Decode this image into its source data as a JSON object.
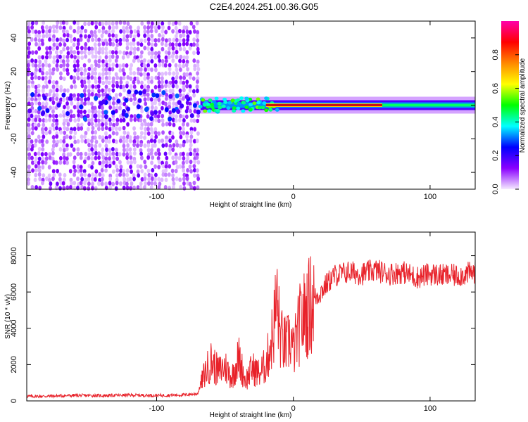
{
  "title": "C2E4.2024.251.00.36.G05",
  "colors": {
    "snr_line": "#e8222a",
    "centerline": "#cc1111",
    "background": "#ffffff"
  },
  "colorbar": {
    "label": "Normalized spectral amplitude",
    "ticks": [
      "0.0",
      "0.2",
      "0.4",
      "0.6",
      "0.8"
    ],
    "tick_values": [
      0.0,
      0.2,
      0.4,
      0.6,
      0.8
    ],
    "range": [
      0,
      1
    ],
    "colormap": [
      "#f5eaff",
      "#8a00ff",
      "#0000ff",
      "#00ffff",
      "#00ff00",
      "#ffff00",
      "#ff8800",
      "#ff0000",
      "#ff00aa"
    ]
  },
  "chart_data": [
    {
      "type": "heatmap",
      "title": "",
      "xlabel": "Height of straight line (km)",
      "ylabel": "Frequency (Hz)",
      "xlim": [
        -195,
        133
      ],
      "ylim": [
        -50,
        50
      ],
      "xticks": [
        -100,
        0,
        100
      ],
      "xtick_labels": [
        "-100",
        "0",
        "100"
      ],
      "yticks": [
        -40,
        -20,
        0,
        20,
        40
      ],
      "ytick_labels": [
        "-40",
        "-20",
        "0",
        "20",
        "40"
      ],
      "description_values": {
        "noise_region_x": [
          -195,
          -68
        ],
        "signal_line_frequency": 0,
        "strong_signal_x": [
          -20,
          60
        ]
      }
    },
    {
      "type": "line",
      "title": "",
      "xlabel": "Height of straight line (km)",
      "ylabel": "SNR (10 * v/v)",
      "xlim": [
        -195,
        133
      ],
      "ylim": [
        0,
        9300
      ],
      "xticks": [
        -100,
        0,
        100
      ],
      "xtick_labels": [
        "-100",
        "0",
        "100"
      ],
      "yticks": [
        0,
        2000,
        4000,
        6000,
        8000
      ],
      "ytick_labels": [
        "0",
        "2000",
        "4000",
        "6000",
        "8000"
      ],
      "series": [
        {
          "x": [
            -195,
            -180,
            -160,
            -140,
            -120,
            -100,
            -80,
            -70,
            -65,
            -60,
            -55,
            -50,
            -45,
            -40,
            -35,
            -30,
            -25,
            -20,
            -15,
            -12,
            -10,
            -8,
            -5,
            -2,
            0,
            5,
            10,
            15,
            20,
            25,
            30,
            40,
            50,
            60,
            70,
            80,
            90,
            100,
            110,
            120,
            133
          ],
          "y": [
            250,
            260,
            300,
            290,
            320,
            300,
            330,
            400,
            1500,
            2200,
            1600,
            1900,
            1300,
            2400,
            1100,
            1800,
            1500,
            2000,
            3700,
            5600,
            3800,
            3200,
            3000,
            3500,
            2700,
            4300,
            5000,
            5600,
            6000,
            6500,
            6900,
            7100,
            7000,
            7200,
            7000,
            7100,
            6800,
            7000,
            6900,
            6900,
            7100
          ]
        }
      ]
    }
  ]
}
